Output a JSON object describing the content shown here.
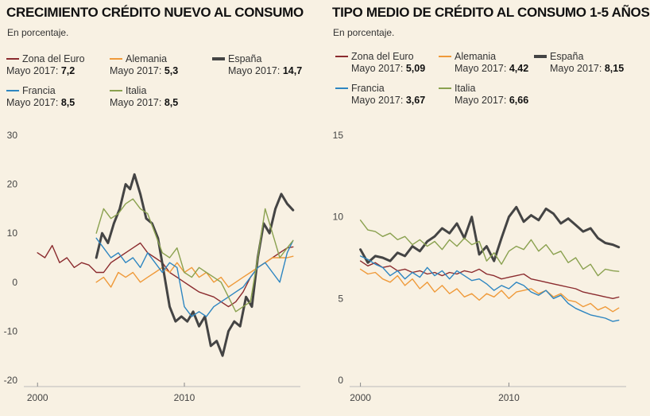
{
  "chart_data": [
    {
      "type": "line",
      "title": "CRECIMIENTO CRÉDITO NUEVO AL CONSUMO",
      "subtitle": "En porcentaje.",
      "x_ticks": [
        "2000",
        "2010"
      ],
      "y_ticks": [
        "30",
        "20",
        "10",
        "0",
        "-10",
        "-20"
      ],
      "xlim": [
        1999.5,
        2017.9
      ],
      "ylim": [
        -20,
        30
      ],
      "grid": false,
      "legend": [
        {
          "series": "Zona del Euro",
          "prefix": "Mayo 2017:",
          "value": "7,2"
        },
        {
          "series": "Alemania",
          "prefix": "Mayo 2017:",
          "value": "5,3"
        },
        {
          "series": "España",
          "prefix": "Mayo 2017:",
          "value": "14,7"
        },
        {
          "series": "Francia",
          "prefix": "Mayo 2017:",
          "value": "8,5"
        },
        {
          "series": "Italia",
          "prefix": "Mayo 2017:",
          "value": "8,5"
        }
      ],
      "series": [
        {
          "name": "Zona del Euro",
          "color": "#8b2b2e",
          "thick": false,
          "x": [
            2000,
            2000.5,
            2001,
            2001.5,
            2002,
            2002.5,
            2003,
            2003.5,
            2004,
            2004.5,
            2005,
            2005.5,
            2006,
            2006.5,
            2007,
            2007.5,
            2008,
            2008.5,
            2009,
            2009.5,
            2010,
            2010.5,
            2011,
            2011.5,
            2012,
            2012.5,
            2013,
            2013.5,
            2014,
            2014.5,
            2015,
            2015.5,
            2016,
            2016.5,
            2017,
            2017.4
          ],
          "y": [
            6,
            5,
            7.5,
            4,
            5,
            3,
            4,
            3.5,
            2,
            2,
            4,
            5,
            6,
            7,
            8,
            6,
            5,
            4,
            2,
            1,
            0,
            -1,
            -2,
            -2.5,
            -3,
            -4,
            -5,
            -4,
            -2,
            1,
            3,
            4,
            5,
            6,
            7,
            7.2
          ]
        },
        {
          "name": "Alemania",
          "color": "#ef9a3a",
          "thick": false,
          "x": [
            2004,
            2004.5,
            2005,
            2005.5,
            2006,
            2006.5,
            2007,
            2007.5,
            2008,
            2008.5,
            2009,
            2009.5,
            2010,
            2010.5,
            2011,
            2011.5,
            2012,
            2012.5,
            2013,
            2013.5,
            2014,
            2014.5,
            2015,
            2015.5,
            2016,
            2016.5,
            2017,
            2017.4
          ],
          "y": [
            0,
            1,
            -1,
            2,
            1,
            2,
            0,
            1,
            2,
            3,
            2,
            4,
            2,
            3,
            1,
            2,
            0,
            1,
            -1,
            0,
            1,
            2,
            3,
            4,
            5,
            5,
            5,
            5.3
          ]
        },
        {
          "name": "España",
          "color": "#444444",
          "thick": true,
          "x": [
            2004,
            2004.4,
            2004.8,
            2005.2,
            2005.6,
            2006,
            2006.3,
            2006.6,
            2007,
            2007.4,
            2007.8,
            2008.2,
            2008.6,
            2009,
            2009.4,
            2009.8,
            2010.2,
            2010.6,
            2011,
            2011.4,
            2011.8,
            2012.2,
            2012.6,
            2013,
            2013.4,
            2013.8,
            2014.2,
            2014.6,
            2015,
            2015.4,
            2015.8,
            2016.2,
            2016.6,
            2017,
            2017.4
          ],
          "y": [
            5,
            10,
            8,
            12,
            15,
            20,
            19,
            22,
            18,
            13,
            12,
            9,
            2,
            -5,
            -8,
            -7,
            -8,
            -6,
            -9,
            -7,
            -13,
            -12,
            -15,
            -10,
            -8,
            -9,
            -3,
            -5,
            5,
            12,
            10,
            15,
            18,
            16,
            14.7
          ]
        },
        {
          "name": "Francia",
          "color": "#2e86c1",
          "thick": false,
          "x": [
            2004,
            2004.5,
            2005,
            2005.5,
            2006,
            2006.5,
            2007,
            2007.5,
            2008,
            2008.5,
            2009,
            2009.5,
            2010,
            2010.5,
            2011,
            2011.5,
            2012,
            2012.5,
            2013,
            2013.5,
            2014,
            2014.5,
            2015,
            2015.5,
            2016,
            2016.5,
            2017,
            2017.4
          ],
          "y": [
            9,
            7,
            5,
            6,
            4,
            5,
            3,
            6,
            4,
            2,
            4,
            3,
            -5,
            -7,
            -6,
            -7,
            -5,
            -4,
            -3,
            -2,
            -1,
            1,
            3,
            4,
            2,
            0,
            6,
            8.5
          ]
        },
        {
          "name": "Italia",
          "color": "#8aa14f",
          "thick": false,
          "x": [
            2004,
            2004.5,
            2005,
            2005.5,
            2006,
            2006.5,
            2007,
            2007.5,
            2008,
            2008.5,
            2009,
            2009.5,
            2010,
            2010.5,
            2011,
            2011.5,
            2012,
            2012.5,
            2013,
            2013.5,
            2014,
            2014.5,
            2015,
            2015.5,
            2016,
            2016.5,
            2017,
            2017.4
          ],
          "y": [
            10,
            15,
            13,
            14,
            16,
            17,
            15,
            14,
            10,
            6,
            5,
            7,
            2,
            1,
            3,
            2,
            1,
            0,
            -3,
            -6,
            -5,
            -4,
            5,
            15,
            10,
            5,
            7,
            8.5
          ]
        }
      ]
    },
    {
      "type": "line",
      "title": "TIPO MEDIO DE CRÉDITO AL CONSUMO 1-5 AÑOS",
      "subtitle": "En porcentaje.",
      "x_ticks": [
        "2000",
        "2010"
      ],
      "y_ticks": [
        "15",
        "10",
        "5",
        "0"
      ],
      "xlim": [
        1999.7,
        2017.9
      ],
      "ylim": [
        0,
        15
      ],
      "grid": false,
      "legend": [
        {
          "series": "Zona del Euro",
          "prefix": "Mayo 2017:",
          "value": "5,09"
        },
        {
          "series": "Alemania",
          "prefix": "Mayo 2017:",
          "value": "4,42"
        },
        {
          "series": "España",
          "prefix": "Mayo 2017:",
          "value": "8,15"
        },
        {
          "series": "Francia",
          "prefix": "Mayo 2017:",
          "value": "3,67"
        },
        {
          "series": "Italia",
          "prefix": "Mayo 2017:",
          "value": "6,66"
        }
      ],
      "series": [
        {
          "name": "Zona del Euro",
          "color": "#8b2b2e",
          "thick": false,
          "x": [
            2000,
            2000.5,
            2001,
            2001.5,
            2002,
            2002.5,
            2003,
            2003.5,
            2004,
            2004.5,
            2005,
            2005.5,
            2006,
            2006.5,
            2007,
            2007.5,
            2008,
            2008.5,
            2009,
            2009.5,
            2010,
            2010.5,
            2011,
            2011.5,
            2012,
            2012.5,
            2013,
            2013.5,
            2014,
            2014.5,
            2015,
            2015.5,
            2016,
            2016.5,
            2017,
            2017.4
          ],
          "y": [
            7.3,
            7.0,
            7.2,
            6.9,
            7.0,
            6.7,
            6.8,
            6.6,
            6.7,
            6.5,
            6.6,
            6.4,
            6.6,
            6.5,
            6.7,
            6.6,
            6.8,
            6.5,
            6.4,
            6.2,
            6.3,
            6.4,
            6.5,
            6.2,
            6.1,
            6.0,
            5.9,
            5.8,
            5.7,
            5.6,
            5.4,
            5.3,
            5.2,
            5.1,
            5.0,
            5.09
          ]
        },
        {
          "name": "Alemania",
          "color": "#ef9a3a",
          "thick": false,
          "x": [
            2000,
            2000.5,
            2001,
            2001.5,
            2002,
            2002.5,
            2003,
            2003.5,
            2004,
            2004.5,
            2005,
            2005.5,
            2006,
            2006.5,
            2007,
            2007.5,
            2008,
            2008.5,
            2009,
            2009.5,
            2010,
            2010.5,
            2011,
            2011.5,
            2012,
            2012.5,
            2013,
            2013.5,
            2014,
            2014.5,
            2015,
            2015.5,
            2016,
            2016.5,
            2017,
            2017.4
          ],
          "y": [
            6.8,
            6.5,
            6.6,
            6.2,
            6.0,
            6.4,
            5.8,
            6.2,
            5.6,
            6.0,
            5.4,
            5.8,
            5.3,
            5.6,
            5.1,
            5.3,
            4.9,
            5.3,
            5.1,
            5.5,
            5.0,
            5.4,
            5.5,
            5.6,
            5.3,
            5.5,
            5.1,
            5.3,
            4.9,
            4.8,
            4.5,
            4.7,
            4.3,
            4.5,
            4.2,
            4.42
          ]
        },
        {
          "name": "España",
          "color": "#444444",
          "thick": true,
          "x": [
            2000,
            2000.5,
            2001,
            2001.5,
            2002,
            2002.5,
            2003,
            2003.5,
            2004,
            2004.5,
            2005,
            2005.5,
            2006,
            2006.5,
            2007,
            2007.5,
            2008,
            2008.5,
            2009,
            2009.5,
            2010,
            2010.5,
            2011,
            2011.5,
            2012,
            2012.5,
            2013,
            2013.5,
            2014,
            2014.5,
            2015,
            2015.5,
            2016,
            2016.5,
            2017,
            2017.4
          ],
          "y": [
            8.0,
            7.2,
            7.6,
            7.5,
            7.3,
            7.8,
            7.6,
            8.2,
            7.9,
            8.5,
            8.8,
            9.3,
            9.0,
            9.6,
            8.7,
            10.0,
            7.7,
            8.2,
            7.3,
            8.7,
            10.0,
            10.6,
            9.7,
            10.1,
            9.8,
            10.5,
            10.2,
            9.6,
            9.9,
            9.5,
            9.1,
            9.3,
            8.7,
            8.4,
            8.3,
            8.15
          ]
        },
        {
          "name": "Francia",
          "color": "#2e86c1",
          "thick": false,
          "x": [
            2000,
            2000.5,
            2001,
            2001.5,
            2002,
            2002.5,
            2003,
            2003.5,
            2004,
            2004.5,
            2005,
            2005.5,
            2006,
            2006.5,
            2007,
            2007.5,
            2008,
            2008.5,
            2009,
            2009.5,
            2010,
            2010.5,
            2011,
            2011.5,
            2012,
            2012.5,
            2013,
            2013.5,
            2014,
            2014.5,
            2015,
            2015.5,
            2016,
            2016.5,
            2017,
            2017.4
          ],
          "y": [
            7.6,
            7.4,
            7.1,
            6.9,
            6.4,
            6.7,
            6.2,
            6.6,
            6.3,
            6.9,
            6.4,
            6.7,
            6.2,
            6.7,
            6.4,
            6.1,
            6.2,
            5.9,
            5.5,
            5.8,
            5.6,
            6.0,
            5.8,
            5.4,
            5.2,
            5.5,
            5.0,
            5.2,
            4.7,
            4.4,
            4.2,
            4.0,
            3.9,
            3.8,
            3.6,
            3.67
          ]
        },
        {
          "name": "Italia",
          "color": "#8aa14f",
          "thick": false,
          "x": [
            2000,
            2000.5,
            2001,
            2001.5,
            2002,
            2002.5,
            2003,
            2003.5,
            2004,
            2004.5,
            2005,
            2005.5,
            2006,
            2006.5,
            2007,
            2007.5,
            2008,
            2008.5,
            2009,
            2009.5,
            2010,
            2010.5,
            2011,
            2011.5,
            2012,
            2012.5,
            2013,
            2013.5,
            2014,
            2014.5,
            2015,
            2015.5,
            2016,
            2016.5,
            2017,
            2017.4
          ],
          "y": [
            9.8,
            9.2,
            9.1,
            8.8,
            9.0,
            8.6,
            8.8,
            8.3,
            8.6,
            8.2,
            8.5,
            8.0,
            8.6,
            8.2,
            8.7,
            8.3,
            8.5,
            7.3,
            7.8,
            7.1,
            7.9,
            8.2,
            8.0,
            8.6,
            7.9,
            8.3,
            7.7,
            7.9,
            7.2,
            7.5,
            6.8,
            7.1,
            6.4,
            6.8,
            6.7,
            6.66
          ]
        }
      ]
    }
  ]
}
